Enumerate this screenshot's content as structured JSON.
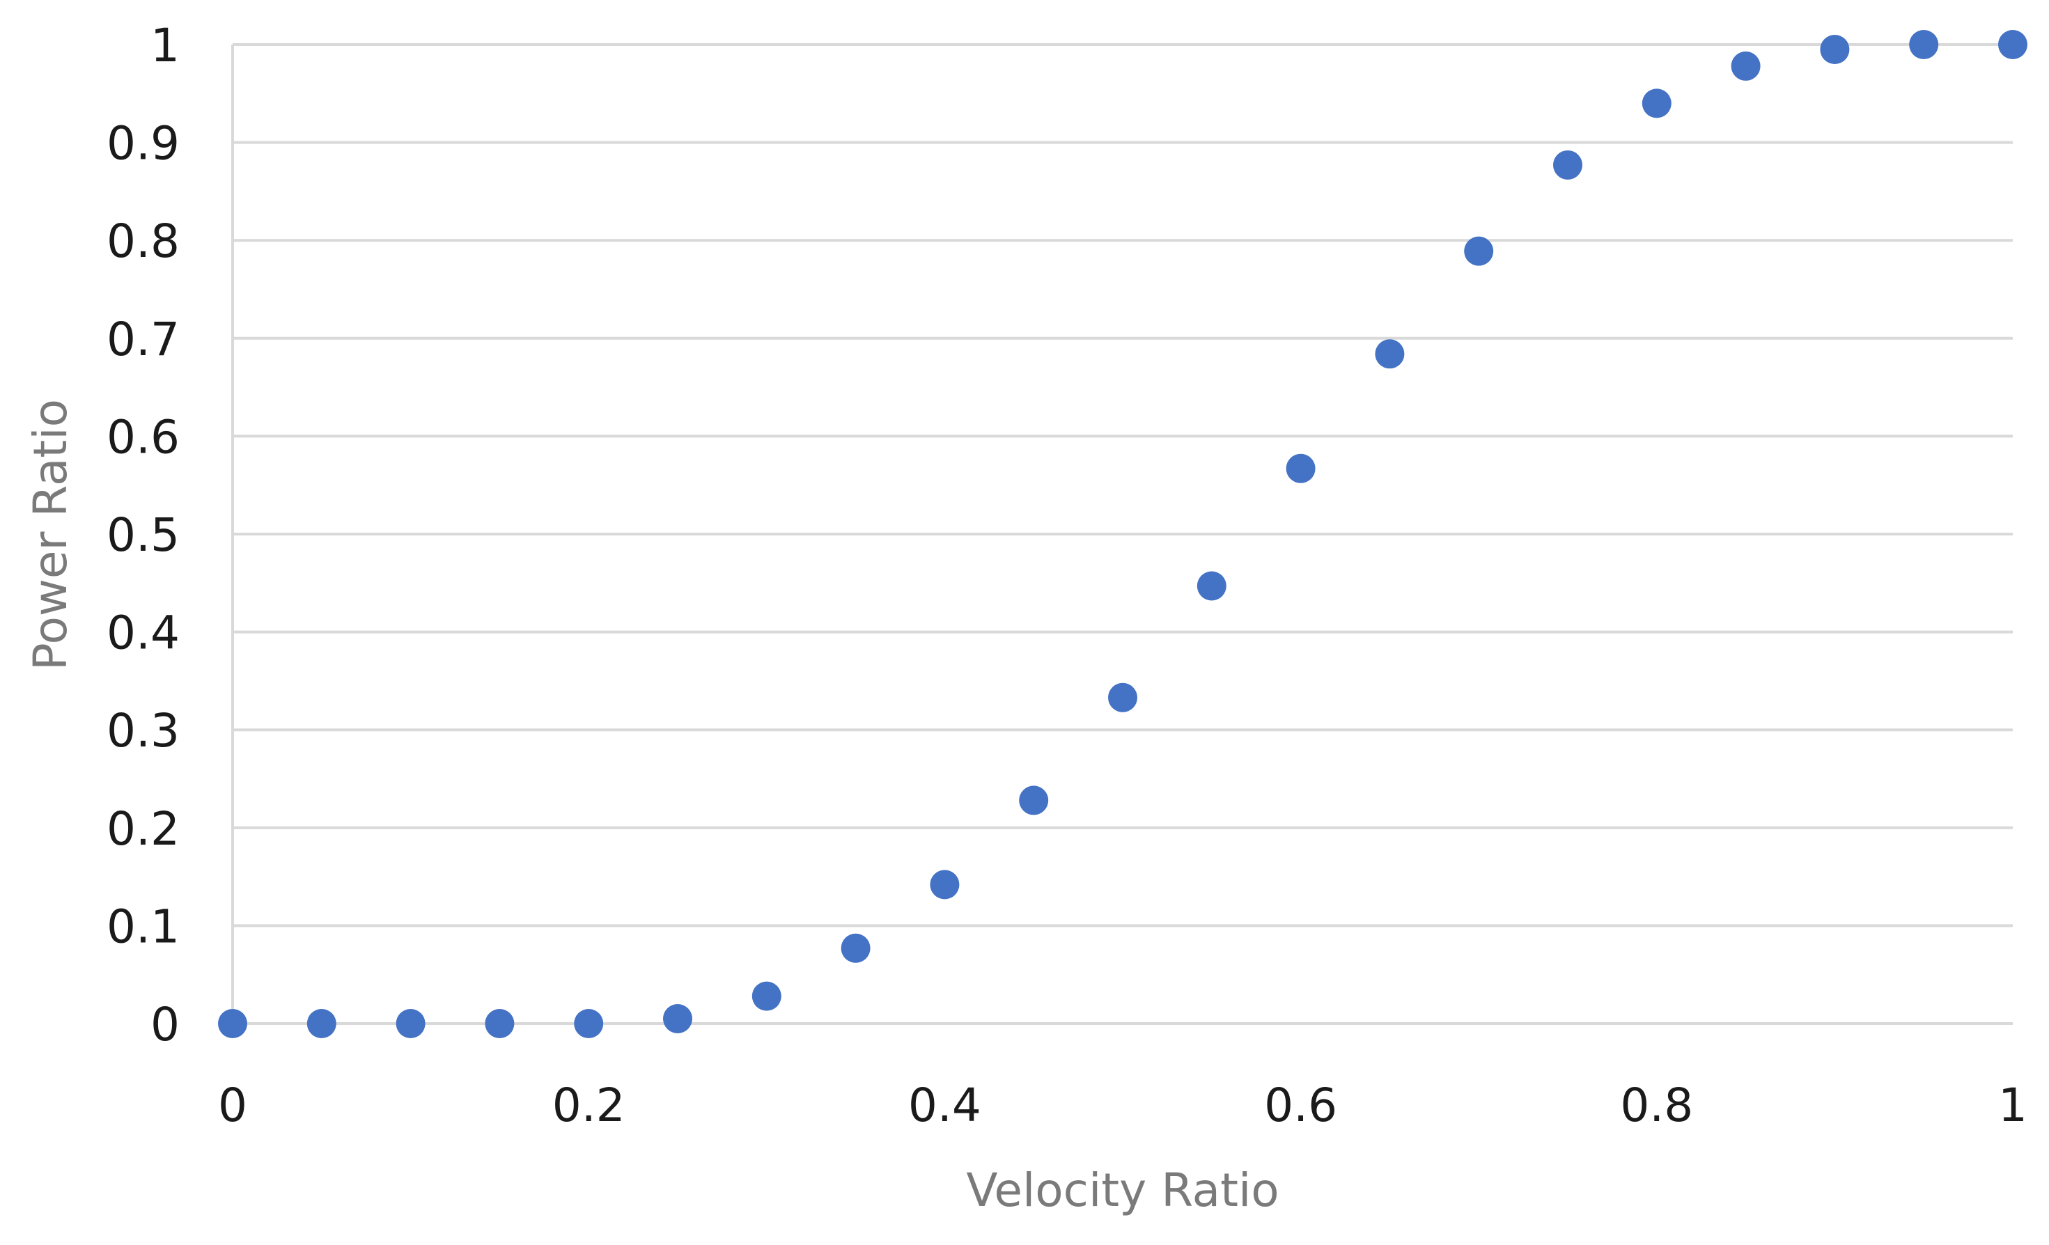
{
  "chart_data": {
    "type": "scatter",
    "title": "",
    "xlabel": "Velocity Ratio",
    "ylabel": "Power Ratio",
    "xlim": [
      0,
      1
    ],
    "ylim": [
      0,
      1
    ],
    "grid": true,
    "marker_color": "#4472C4",
    "x_ticks": [
      "0",
      "0.2",
      "0.4",
      "0.6",
      "0.8",
      "1"
    ],
    "y_ticks": [
      "0",
      "0.1",
      "0.2",
      "0.3",
      "0.4",
      "0.5",
      "0.6",
      "0.7",
      "0.8",
      "0.9",
      "1"
    ],
    "series": [
      {
        "name": "Power Ratio",
        "x": [
          0,
          0.05,
          0.1,
          0.15,
          0.2,
          0.25,
          0.3,
          0.35,
          0.4,
          0.45,
          0.5,
          0.55,
          0.6,
          0.65,
          0.7,
          0.75,
          0.8,
          0.85,
          0.9,
          0.95,
          1.0
        ],
        "y": [
          0,
          0,
          0,
          0,
          0,
          0.005,
          0.028,
          0.077,
          0.142,
          0.228,
          0.333,
          0.447,
          0.567,
          0.684,
          0.789,
          0.877,
          0.94,
          0.978,
          0.995,
          1.0,
          1.0
        ]
      }
    ]
  }
}
